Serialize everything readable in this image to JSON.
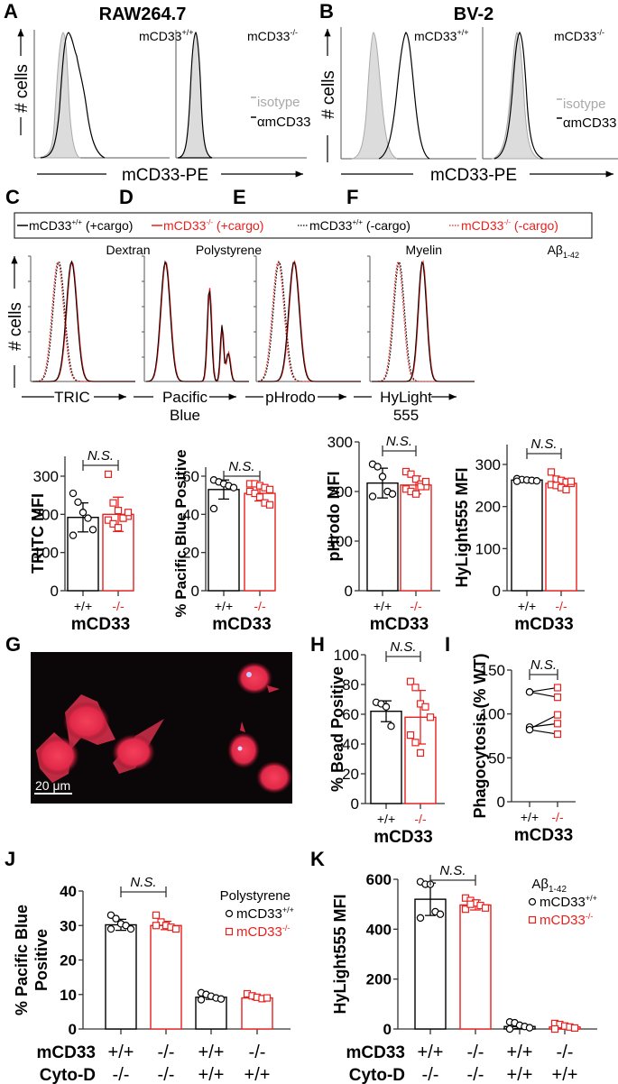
{
  "figure": {
    "panel_labels": [
      "A",
      "B",
      "C",
      "D",
      "E",
      "F",
      "G",
      "H",
      "I",
      "J",
      "K"
    ],
    "colors": {
      "wt": "#000000",
      "ko": "#e8201e",
      "isotype_fill": "#dcdcdc",
      "isotype_line": "#a9a9a9"
    }
  },
  "panelA": {
    "label": "A",
    "title": "RAW264.7",
    "plots": [
      {
        "label": "mCD33",
        "sup": "+/+"
      },
      {
        "label": "mCD33",
        "sup": "-/-"
      }
    ],
    "y_axis": "# cells",
    "x_axis": "mCD33-PE",
    "legend": [
      {
        "text": "isotype",
        "color": "#a9a9a9"
      },
      {
        "text": "αmCD33",
        "color": "#000000"
      }
    ]
  },
  "panelB": {
    "label": "B",
    "title": "BV-2",
    "plots": [
      {
        "label": "mCD33",
        "sup": "+/+"
      },
      {
        "label": "mCD33",
        "sup": "-/-"
      }
    ],
    "y_axis": "# cells",
    "x_axis": "mCD33-PE",
    "legend": [
      {
        "text": "isotype",
        "color": "#a9a9a9"
      },
      {
        "text": "αmCD33",
        "color": "#000000"
      }
    ]
  },
  "legendCDEF": {
    "items": [
      {
        "text": "mCD33",
        "sup": "+/+",
        "suffix": " (+cargo)",
        "color": "#000000",
        "dash": "solid"
      },
      {
        "text": "mCD33",
        "sup": "-/-",
        "suffix": " (+cargo)",
        "color": "#e8201e",
        "dash": "solid"
      },
      {
        "text": "mCD33",
        "sup": "+/+",
        "suffix": " (-cargo)",
        "color": "#000000",
        "dash": "dotted"
      },
      {
        "text": "mCD33",
        "sup": "-/-",
        "suffix": " (-cargo)",
        "color": "#e8201e",
        "dash": "dotted"
      }
    ]
  },
  "histograms": {
    "y_axis": "# cells",
    "panels": [
      {
        "label": "C",
        "cargo": "Dextran",
        "x_axis": "TRIC",
        "x_axis2": ""
      },
      {
        "label": "D",
        "cargo": "Polystyrene",
        "x_axis": "Pacific",
        "x_axis2": "Blue"
      },
      {
        "label": "E",
        "cargo": "Myelin",
        "x_axis": "pHrodo",
        "x_axis2": ""
      },
      {
        "label": "F",
        "cargo": "Aβ",
        "cargo_sub": "1-42",
        "x_axis": "HyLight",
        "x_axis2": "555"
      }
    ]
  },
  "chart_data": [
    {
      "panel": "C",
      "type": "bar",
      "title": "",
      "categories": [
        "+/+",
        "-/-"
      ],
      "xlabel": "mCD33",
      "ylabel": "TRITC MFI",
      "ylim": [
        0,
        300
      ],
      "yticks": [
        0,
        100,
        200,
        300
      ],
      "values": [
        192,
        200
      ],
      "errors": [
        38,
        45
      ],
      "points": [
        [
          255,
          232,
          205,
          190,
          160,
          145
        ],
        [
          305,
          230,
          210,
          190,
          195,
          185,
          175,
          165,
          190,
          205
        ]
      ],
      "annotation": "N.S."
    },
    {
      "panel": "D",
      "type": "bar",
      "title": "",
      "categories": [
        "+/+",
        "-/-"
      ],
      "xlabel": "mCD33",
      "ylabel": "% Pacific Blue Positive",
      "ylim": [
        0,
        60
      ],
      "yticks": [
        0,
        20,
        40,
        60
      ],
      "values": [
        53,
        51
      ],
      "errors": [
        5,
        4
      ],
      "points": [
        [
          58,
          57,
          56,
          55,
          54,
          43
        ],
        [
          56,
          56,
          55,
          54,
          53,
          52,
          51,
          49,
          46,
          45
        ]
      ],
      "annotation": "N.S."
    },
    {
      "panel": "E",
      "type": "bar",
      "title": "",
      "categories": [
        "+/+",
        "-/-"
      ],
      "xlabel": "mCD33",
      "ylabel": "pHrodo MFI",
      "ylim": [
        0,
        300
      ],
      "yticks": [
        0,
        100,
        200,
        300
      ],
      "values": [
        217,
        213
      ],
      "errors": [
        30,
        18
      ],
      "points": [
        [
          255,
          250,
          230,
          200,
          195,
          190
        ],
        [
          240,
          235,
          225,
          215,
          210,
          205,
          200,
          195,
          210,
          220
        ]
      ],
      "annotation": "N.S."
    },
    {
      "panel": "F",
      "type": "bar",
      "title": "",
      "categories": [
        "+/+",
        "-/-"
      ],
      "xlabel": "mCD33",
      "ylabel": "HyLight555 MFI",
      "ylim": [
        0,
        300
      ],
      "yticks": [
        0,
        100,
        200,
        300
      ],
      "values": [
        263,
        255
      ],
      "errors": [
        4,
        12
      ],
      "points": [
        [
          266,
          264,
          263,
          262,
          261,
          260
        ],
        [
          282,
          265,
          262,
          258,
          255,
          252,
          250,
          245,
          240,
          260
        ]
      ],
      "annotation": "N.S."
    },
    {
      "panel": "H",
      "type": "bar",
      "title": "",
      "categories": [
        "+/+",
        "-/-"
      ],
      "xlabel": "mCD33",
      "ylabel": "% Bead Positive",
      "ylim": [
        0,
        100
      ],
      "yticks": [
        0,
        20,
        40,
        60,
        80,
        100
      ],
      "values": [
        62,
        58
      ],
      "errors": [
        7,
        18
      ],
      "points": [
        [
          68,
          67,
          65,
          52
        ],
        [
          82,
          78,
          67,
          65,
          58,
          46,
          41,
          34
        ]
      ],
      "annotation": "N.S."
    },
    {
      "panel": "I",
      "type": "line",
      "title": "",
      "categories": [
        "+/+",
        "-/-"
      ],
      "xlabel": "mCD33",
      "ylabel": "Phagocytosis (% WT)",
      "ylim": [
        0,
        150
      ],
      "yticks": [
        0,
        50,
        100,
        150
      ],
      "pairs": [
        [
          125,
          130
        ],
        [
          125,
          119
        ],
        [
          83,
          99
        ],
        [
          85,
          89
        ],
        [
          82,
          77
        ]
      ],
      "annotation": "N.S."
    },
    {
      "panel": "J",
      "type": "bar",
      "title": "",
      "categories": [
        "+/+ / -/-",
        "-/- / -/-",
        "+/+ / +/+",
        "-/- / +/+"
      ],
      "row_labels": {
        "mCD33": [
          "+/+",
          "-/-",
          "+/+",
          "-/-"
        ],
        "Cyto-D": [
          "-/-",
          "-/-",
          "+/+",
          "+/+"
        ]
      },
      "ylabel": "% Pacific Blue Positive",
      "ylim": [
        0,
        40
      ],
      "yticks": [
        0,
        10,
        20,
        30,
        40
      ],
      "values": [
        30.2,
        30.0,
        9.2,
        9.0
      ],
      "errors": [
        1.6,
        1.2,
        0.6,
        0.5
      ],
      "points": [
        [
          33,
          32,
          30.5,
          30,
          29,
          29
        ],
        [
          33,
          31,
          30,
          29.5,
          29,
          30
        ],
        [
          10.5,
          10,
          9.5,
          9,
          8.7,
          8.5
        ],
        [
          10.2,
          9.6,
          9.2,
          8.8,
          9
        ]
      ],
      "legend_title": "Polystyrene",
      "legend": [
        {
          "text": "mCD33",
          "sup": "+/+",
          "marker": "circle",
          "color": "#000000"
        },
        {
          "text": "mCD33",
          "sup": "-/-",
          "marker": "square",
          "color": "#e8201e"
        }
      ],
      "annotation": "N.S."
    },
    {
      "panel": "K",
      "type": "bar",
      "title": "",
      "categories": [
        "+/+ / -/-",
        "-/- / -/-",
        "+/+ / +/+",
        "-/- / +/+"
      ],
      "row_labels": {
        "mCD33": [
          "+/+",
          "-/-",
          "+/+",
          "-/-"
        ],
        "Cyto-D": [
          "-/-",
          "-/-",
          "+/+",
          "+/+"
        ]
      },
      "ylabel": "HyLight555 MFI",
      "ylim": [
        0,
        600
      ],
      "yticks": [
        0,
        200,
        400,
        600
      ],
      "values": [
        520,
        497
      ],
      "errors": [
        65,
        20
      ],
      "values_full": [
        520,
        497,
        10,
        8
      ],
      "errors_full": [
        65,
        20,
        8,
        6
      ],
      "points": [
        [
          590,
          580,
          580,
          470,
          460,
          445
        ],
        [
          525,
          515,
          505,
          495,
          485,
          480,
          500
        ],
        [
          28,
          25,
          15,
          10,
          5,
          0
        ],
        [
          22,
          18,
          12,
          8,
          4,
          0
        ]
      ],
      "legend_title": "Aβ",
      "legend_title_sub": "1-42",
      "legend": [
        {
          "text": "mCD33",
          "sup": "+/+",
          "marker": "circle",
          "color": "#000000"
        },
        {
          "text": "mCD33",
          "sup": "-/-",
          "marker": "square",
          "color": "#e8201e"
        }
      ],
      "annotation": "N.S."
    }
  ],
  "panelG": {
    "label": "G",
    "scale_bar": "20 μm"
  },
  "common": {
    "ns": "N.S.",
    "mcd33": "mCD33",
    "cytod": "Cyto-D"
  }
}
